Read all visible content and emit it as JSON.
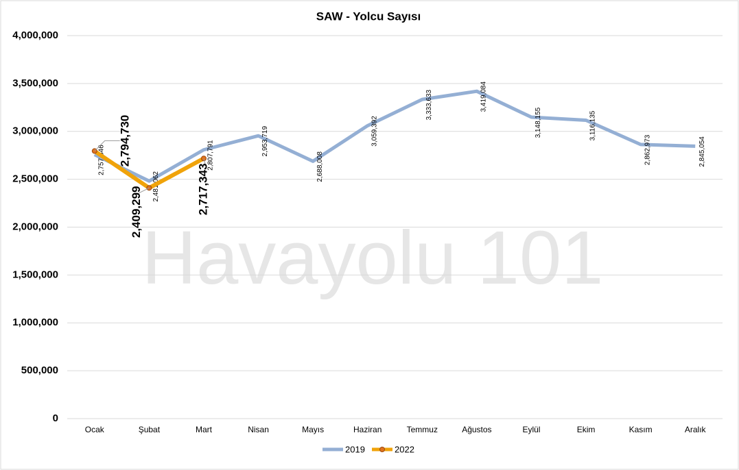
{
  "chart_data": {
    "type": "line",
    "title": "SAW - Yolcu Sayısı",
    "watermark": "Havayolu 101",
    "categories": [
      "Ocak",
      "Şubat",
      "Mart",
      "Nisan",
      "Mayıs",
      "Haziran",
      "Temmuz",
      "Ağustos",
      "Eylül",
      "Ekim",
      "Kasım",
      "Aralık"
    ],
    "series": [
      {
        "name": "2019",
        "color": "#94afd4",
        "values": [
          2757846,
          2481062,
          2807791,
          2953719,
          2688008,
          3059392,
          3333633,
          3419084,
          3148155,
          3116135,
          2862973,
          2845054
        ],
        "value_labels": [
          "2,757,846",
          "2,481,062",
          "2,807,791",
          "2,953,719",
          "2,688,008",
          "3,059,392",
          "3,333,633",
          "3,419,084",
          "3,148,155",
          "3,116,135",
          "2,862,973",
          "2,845,054"
        ]
      },
      {
        "name": "2022",
        "color": "#f0a30a",
        "values": [
          2794730,
          2409299,
          2717343,
          null,
          null,
          null,
          null,
          null,
          null,
          null,
          null,
          null
        ],
        "value_labels": [
          "2,794,730",
          "2,409,299",
          "2,717,343",
          null,
          null,
          null,
          null,
          null,
          null,
          null,
          null,
          null
        ]
      }
    ],
    "ylim": [
      0,
      4000000
    ],
    "yticks": [
      0,
      {
        "value": 500000,
        "label": "500,000"
      },
      {
        "value": 1000000,
        "label": "1,000,000"
      },
      {
        "value": 1500000,
        "label": "1,500,000"
      },
      {
        "value": 2000000,
        "label": "2,000,000"
      },
      {
        "value": 2500000,
        "label": "2,500,000"
      },
      {
        "value": 3000000,
        "label": "3,000,000"
      },
      {
        "value": 3500000,
        "label": "3,500,000"
      },
      {
        "value": 4000000,
        "label": "4,000,000"
      }
    ],
    "grid": true,
    "legend": "bottom"
  }
}
